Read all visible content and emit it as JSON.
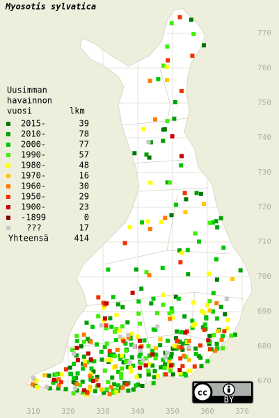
{
  "title": "Myosotis sylvatica",
  "legend": {
    "header": [
      "Uusimman",
      "havainnon",
      "vuosi"
    ],
    "count_header": "lkm",
    "rows": [
      {
        "label": "2015-",
        "count": 39,
        "color": "#007800"
      },
      {
        "label": "2010-",
        "count": 78,
        "color": "#00a000"
      },
      {
        "label": "2000-",
        "count": 77,
        "color": "#00c800"
      },
      {
        "label": "1990-",
        "count": 57,
        "color": "#40f000"
      },
      {
        "label": "1980-",
        "count": 48,
        "color": "#ffff00"
      },
      {
        "label": "1970-",
        "count": 16,
        "color": "#ffc800"
      },
      {
        "label": "1960-",
        "count": 30,
        "color": "#ff7800"
      },
      {
        "label": "1950-",
        "count": 29,
        "color": "#f03000"
      },
      {
        "label": "1900-",
        "count": 23,
        "color": "#c80000"
      },
      {
        "label": "-1899",
        "count": 0,
        "color": "#800000"
      },
      {
        "label": "???",
        "count": 17,
        "color": "#c8c8c8"
      }
    ],
    "total_label": "Yhteensä",
    "total": 414
  },
  "map": {
    "xticks": [
      310,
      320,
      330,
      340,
      350,
      360,
      370
    ],
    "yticks": [
      670,
      680,
      690,
      700,
      710,
      720,
      730,
      740,
      750,
      760,
      770
    ]
  },
  "license": {
    "cc": "cc",
    "by": "BY"
  }
}
